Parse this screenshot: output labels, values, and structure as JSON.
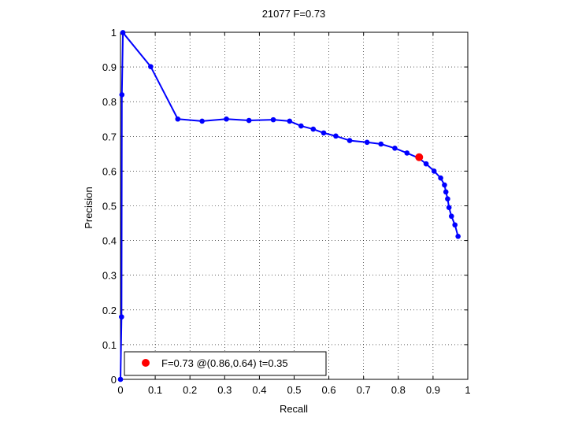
{
  "chart_data": {
    "type": "line",
    "title": "21077 F=0.73",
    "xlabel": "Recall",
    "ylabel": "Precision",
    "xlim": [
      0,
      1
    ],
    "ylim": [
      0,
      1
    ],
    "grid": true,
    "grid_style": "dotted",
    "xticks": [
      0,
      0.1,
      0.2,
      0.3,
      0.4,
      0.5,
      0.6,
      0.7,
      0.8,
      0.9,
      1
    ],
    "yticks": [
      0,
      0.1,
      0.2,
      0.3,
      0.4,
      0.5,
      0.6,
      0.7,
      0.8,
      0.9,
      1
    ],
    "xtick_labels": [
      "0",
      "0.1",
      "0.2",
      "0.3",
      "0.4",
      "0.5",
      "0.6",
      "0.7",
      "0.8",
      "0.9",
      "1"
    ],
    "ytick_labels": [
      "0",
      "0.1",
      "0.2",
      "0.3",
      "0.4",
      "0.5",
      "0.6",
      "0.7",
      "0.8",
      "0.9",
      "1"
    ],
    "series": [
      {
        "color": "#0000ff",
        "marker": "circle",
        "x": [
          0.0,
          0.003,
          0.004,
          0.007,
          0.087,
          0.165,
          0.235,
          0.305,
          0.37,
          0.44,
          0.487,
          0.52,
          0.555,
          0.585,
          0.62,
          0.66,
          0.71,
          0.75,
          0.79,
          0.825,
          0.858,
          0.88,
          0.903,
          0.922,
          0.933,
          0.937,
          0.942,
          0.946,
          0.953,
          0.963,
          0.972
        ],
        "y": [
          0.0,
          0.18,
          0.82,
          0.999,
          0.901,
          0.75,
          0.744,
          0.75,
          0.746,
          0.748,
          0.744,
          0.73,
          0.721,
          0.71,
          0.701,
          0.688,
          0.683,
          0.678,
          0.666,
          0.652,
          0.638,
          0.621,
          0.6,
          0.58,
          0.56,
          0.54,
          0.52,
          0.495,
          0.47,
          0.445,
          0.412
        ]
      }
    ],
    "best_point": {
      "x": 0.86,
      "y": 0.64,
      "color": "#ff0000"
    },
    "legend": {
      "position": "bottom-left",
      "text": "F=0.73 @(0.86,0.64) t=0.35",
      "marker_color": "#ff0000"
    }
  }
}
